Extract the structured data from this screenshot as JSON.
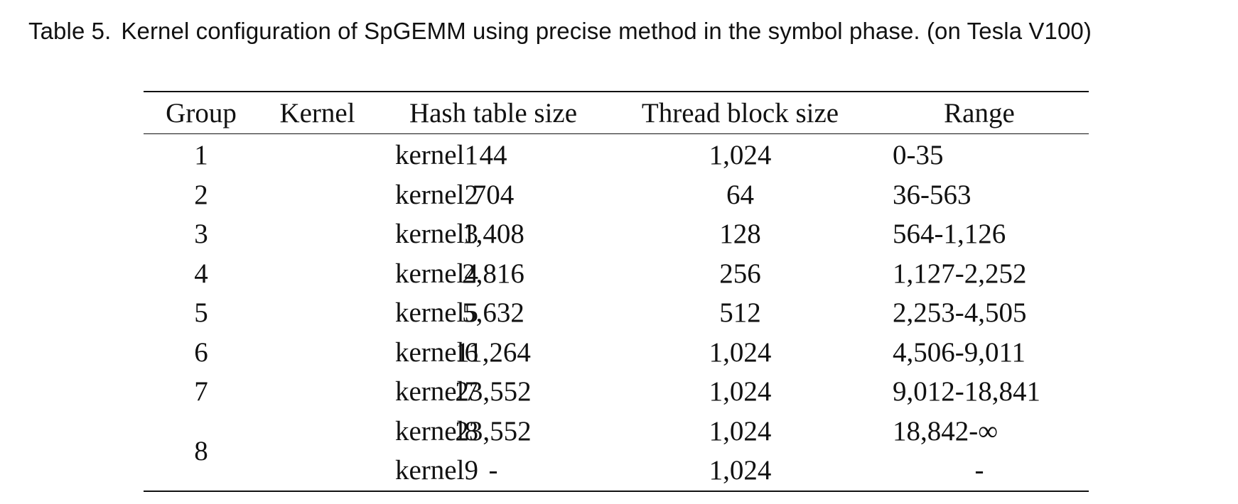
{
  "caption": {
    "label": "Table 5.",
    "text": "Kernel configuration of SpGEMM using precise method in the symbol phase. (on Tesla V100)"
  },
  "table": {
    "headers": [
      "Group",
      "Kernel",
      "Hash table size",
      "Thread block size",
      "Range"
    ],
    "rows": [
      {
        "group": "1",
        "kernel": "kernel1",
        "hash": "44",
        "thread": "1,024",
        "range": "0-35"
      },
      {
        "group": "2",
        "kernel": "kernel2",
        "hash": "704",
        "thread": "64",
        "range": "36-563"
      },
      {
        "group": "3",
        "kernel": "kernel3",
        "hash": "1,408",
        "thread": "128",
        "range": "564-1,126"
      },
      {
        "group": "4",
        "kernel": "kernel4",
        "hash": "2,816",
        "thread": "256",
        "range": "1,127-2,252"
      },
      {
        "group": "5",
        "kernel": "kernel5",
        "hash": "5,632",
        "thread": "512",
        "range": "2,253-4,505"
      },
      {
        "group": "6",
        "kernel": "kernel6",
        "hash": "11,264",
        "thread": "1,024",
        "range": "4,506-9,011"
      },
      {
        "group": "7",
        "kernel": "kernel7",
        "hash": "23,552",
        "thread": "1,024",
        "range": "9,012-18,841"
      },
      {
        "group": "8",
        "kernel": "kernel8",
        "hash": "23,552",
        "thread": "1,024",
        "range": "18,842-∞"
      },
      {
        "group": "",
        "kernel": "kernel9",
        "hash": "-",
        "thread": "1,024",
        "range": "-"
      }
    ]
  }
}
